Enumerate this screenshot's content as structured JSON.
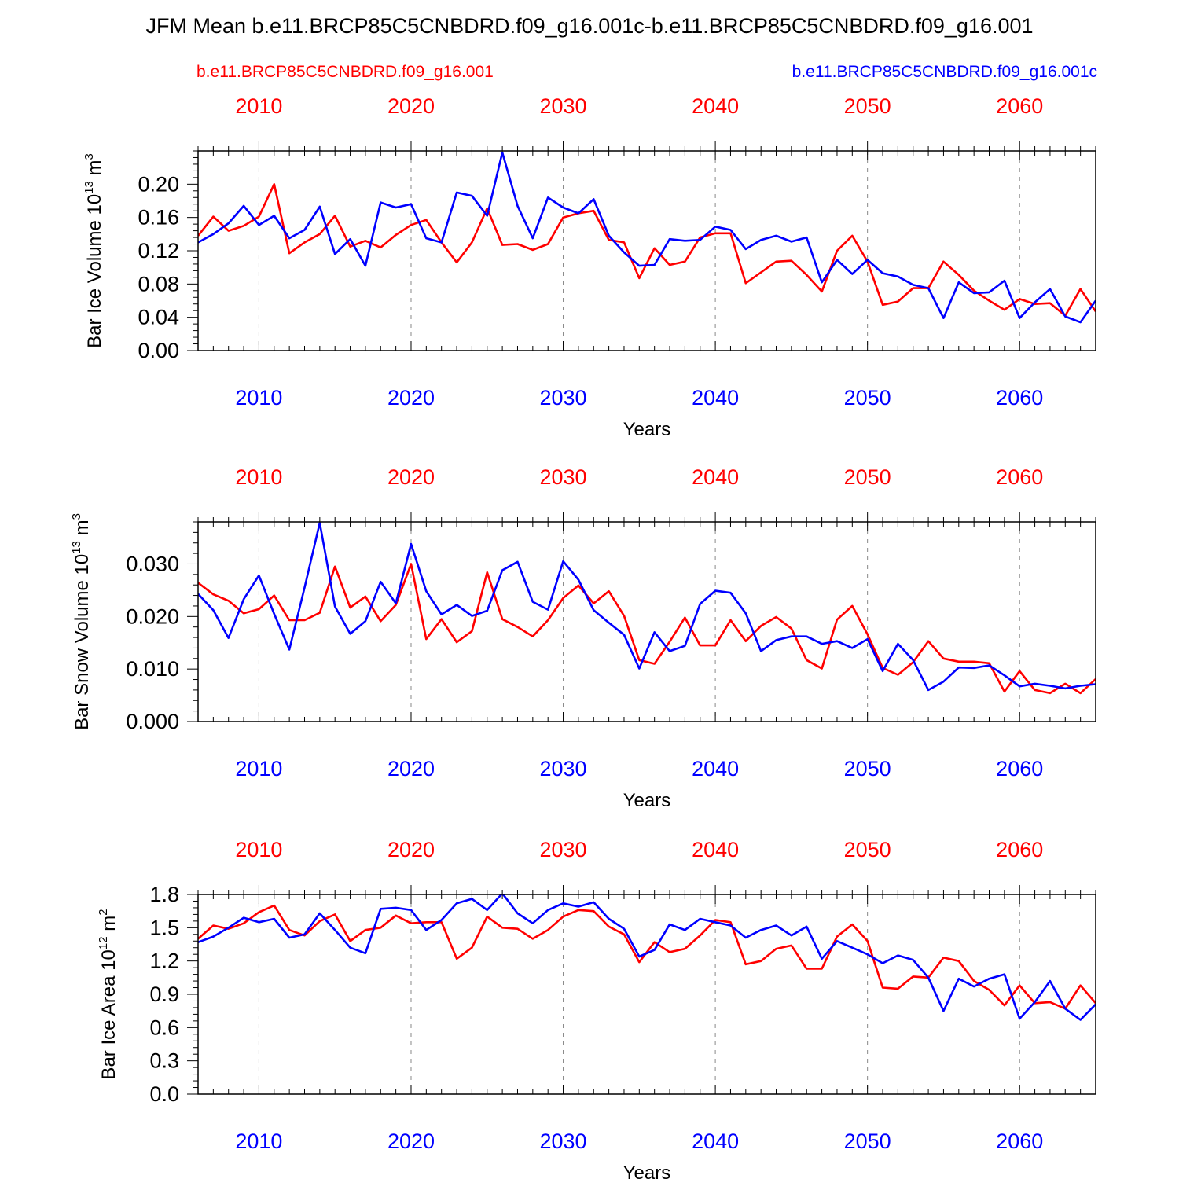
{
  "title": "JFM Mean b.e11.BRCP85C5CNBDRD.f09_g16.001c-b.e11.BRCP85C5CNBDRD.f09_g16.001",
  "legend": {
    "left": {
      "label": "b.e11.BRCP85C5CNBDRD.f09_g16.001",
      "color": "#ff0000"
    },
    "right": {
      "label": "b.e11.BRCP85C5CNBDRD.f09_g16.001c",
      "color": "#0000ff"
    }
  },
  "chart_data": [
    {
      "type": "line",
      "title": "",
      "xlabel": "Years",
      "ylabel": "Bar Ice Volume 10^13 m^3",
      "ylabel_parts": {
        "base": "Bar Ice Volume 10",
        "exp": "13",
        "unit": " m",
        "unit_exp": "3"
      },
      "xlim": [
        2006,
        2065
      ],
      "ylim": [
        0,
        0.24
      ],
      "xticks": [
        2010,
        2020,
        2030,
        2040,
        2050,
        2060
      ],
      "xtick_labels": [
        "2010",
        "2020",
        "2030",
        "2040",
        "2050",
        "2060"
      ],
      "yticks": [
        0,
        0.04,
        0.08,
        0.12,
        0.16,
        0.2
      ],
      "ytick_labels": [
        "0.00",
        "0.04",
        "0.08",
        "0.12",
        "0.16",
        "0.20"
      ],
      "x": [
        2006,
        2007,
        2008,
        2009,
        2010,
        2011,
        2012,
        2013,
        2014,
        2015,
        2016,
        2017,
        2018,
        2019,
        2020,
        2021,
        2022,
        2023,
        2024,
        2025,
        2026,
        2027,
        2028,
        2029,
        2030,
        2031,
        2032,
        2033,
        2034,
        2035,
        2036,
        2037,
        2038,
        2039,
        2040,
        2041,
        2042,
        2043,
        2044,
        2045,
        2046,
        2047,
        2048,
        2049,
        2050,
        2051,
        2052,
        2053,
        2054,
        2055,
        2056,
        2057,
        2058,
        2059,
        2060,
        2061,
        2062,
        2063,
        2064,
        2065
      ],
      "series": [
        {
          "name": "b.e11.BRCP85C5CNBDRD.f09_g16.001",
          "color": "#ff0000",
          "values": [
            0.138,
            0.161,
            0.144,
            0.15,
            0.161,
            0.2,
            0.117,
            0.13,
            0.14,
            0.162,
            0.125,
            0.132,
            0.124,
            0.139,
            0.151,
            0.157,
            0.13,
            0.106,
            0.13,
            0.171,
            0.127,
            0.128,
            0.121,
            0.128,
            0.16,
            0.165,
            0.168,
            0.133,
            0.13,
            0.087,
            0.123,
            0.103,
            0.107,
            0.136,
            0.141,
            0.141,
            0.081,
            0.094,
            0.107,
            0.108,
            0.091,
            0.071,
            0.12,
            0.138,
            0.107,
            0.055,
            0.059,
            0.075,
            0.075,
            0.107,
            0.091,
            0.072,
            0.06,
            0.049,
            0.062,
            0.056,
            0.057,
            0.042,
            0.074,
            0.047
          ]
        },
        {
          "name": "b.e11.BRCP85C5CNBDRD.f09_g16.001c",
          "color": "#0000ff",
          "values": [
            0.13,
            0.14,
            0.153,
            0.174,
            0.151,
            0.162,
            0.135,
            0.145,
            0.173,
            0.116,
            0.134,
            0.102,
            0.178,
            0.172,
            0.176,
            0.135,
            0.13,
            0.19,
            0.186,
            0.162,
            0.238,
            0.174,
            0.135,
            0.184,
            0.172,
            0.165,
            0.182,
            0.138,
            0.118,
            0.102,
            0.103,
            0.134,
            0.132,
            0.133,
            0.149,
            0.145,
            0.122,
            0.133,
            0.138,
            0.131,
            0.136,
            0.082,
            0.109,
            0.092,
            0.109,
            0.093,
            0.089,
            0.079,
            0.075,
            0.039,
            0.082,
            0.069,
            0.07,
            0.084,
            0.039,
            0.058,
            0.074,
            0.041,
            0.034,
            0.06
          ]
        }
      ]
    },
    {
      "type": "line",
      "title": "",
      "xlabel": "Years",
      "ylabel": "Bar Snow Volume 10^13 m^3",
      "ylabel_parts": {
        "base": "Bar Snow Volume 10",
        "exp": "13",
        "unit": " m",
        "unit_exp": "3"
      },
      "xlim": [
        2006,
        2065
      ],
      "ylim": [
        0,
        0.038
      ],
      "xticks": [
        2010,
        2020,
        2030,
        2040,
        2050,
        2060
      ],
      "xtick_labels": [
        "2010",
        "2020",
        "2030",
        "2040",
        "2050",
        "2060"
      ],
      "yticks": [
        0,
        0.01,
        0.02,
        0.03
      ],
      "ytick_labels": [
        "0.000",
        "0.010",
        "0.020",
        "0.030"
      ],
      "x": [
        2006,
        2007,
        2008,
        2009,
        2010,
        2011,
        2012,
        2013,
        2014,
        2015,
        2016,
        2017,
        2018,
        2019,
        2020,
        2021,
        2022,
        2023,
        2024,
        2025,
        2026,
        2027,
        2028,
        2029,
        2030,
        2031,
        2032,
        2033,
        2034,
        2035,
        2036,
        2037,
        2038,
        2039,
        2040,
        2041,
        2042,
        2043,
        2044,
        2045,
        2046,
        2047,
        2048,
        2049,
        2050,
        2051,
        2052,
        2053,
        2054,
        2055,
        2056,
        2057,
        2058,
        2059,
        2060,
        2061,
        2062,
        2063,
        2064,
        2065
      ],
      "series": [
        {
          "name": "b.e11.BRCP85C5CNBDRD.f09_g16.001",
          "color": "#ff0000",
          "values": [
            0.0264,
            0.0242,
            0.023,
            0.0206,
            0.0214,
            0.024,
            0.0193,
            0.0193,
            0.0207,
            0.0295,
            0.0217,
            0.0238,
            0.0191,
            0.0222,
            0.03,
            0.0157,
            0.0195,
            0.0151,
            0.0172,
            0.0284,
            0.0195,
            0.018,
            0.0162,
            0.0193,
            0.0235,
            0.0259,
            0.0225,
            0.0248,
            0.0201,
            0.0117,
            0.011,
            0.0152,
            0.0198,
            0.0145,
            0.0145,
            0.0193,
            0.0153,
            0.0182,
            0.0199,
            0.0177,
            0.0117,
            0.0101,
            0.0194,
            0.022,
            0.0166,
            0.0102,
            0.0089,
            0.0113,
            0.0153,
            0.012,
            0.0114,
            0.0114,
            0.0111,
            0.0057,
            0.0096,
            0.006,
            0.0054,
            0.0072,
            0.0054,
            0.0081
          ]
        },
        {
          "name": "b.e11.BRCP85C5CNBDRD.f09_g16.001c",
          "color": "#0000ff",
          "values": [
            0.0243,
            0.0212,
            0.0159,
            0.0233,
            0.0278,
            0.0205,
            0.0137,
            0.0255,
            0.0378,
            0.0219,
            0.0167,
            0.0191,
            0.0266,
            0.0225,
            0.0338,
            0.0248,
            0.0204,
            0.0222,
            0.0201,
            0.0211,
            0.0288,
            0.0304,
            0.0228,
            0.0213,
            0.0305,
            0.027,
            0.0212,
            0.0188,
            0.0165,
            0.0101,
            0.017,
            0.0134,
            0.0144,
            0.0224,
            0.0249,
            0.0245,
            0.0206,
            0.0134,
            0.0155,
            0.0162,
            0.0162,
            0.0148,
            0.0153,
            0.014,
            0.0157,
            0.0096,
            0.0148,
            0.0117,
            0.006,
            0.0076,
            0.0103,
            0.0102,
            0.0107,
            0.0088,
            0.0067,
            0.0072,
            0.0068,
            0.0063,
            0.0068,
            0.0071
          ]
        }
      ]
    },
    {
      "type": "line",
      "title": "",
      "xlabel": "Years",
      "ylabel": "Bar Ice Area 10^12 m^2",
      "ylabel_parts": {
        "base": "Bar Ice Area 10",
        "exp": "12",
        "unit": " m",
        "unit_exp": "2"
      },
      "xlim": [
        2006,
        2065
      ],
      "ylim": [
        0,
        1.8
      ],
      "xticks": [
        2010,
        2020,
        2030,
        2040,
        2050,
        2060
      ],
      "xtick_labels": [
        "2010",
        "2020",
        "2030",
        "2040",
        "2050",
        "2060"
      ],
      "yticks": [
        0,
        0.3,
        0.6,
        0.9,
        1.2,
        1.5,
        1.8
      ],
      "ytick_labels": [
        "0.0",
        "0.3",
        "0.6",
        "0.9",
        "1.2",
        "1.5",
        "1.8"
      ],
      "x": [
        2006,
        2007,
        2008,
        2009,
        2010,
        2011,
        2012,
        2013,
        2014,
        2015,
        2016,
        2017,
        2018,
        2019,
        2020,
        2021,
        2022,
        2023,
        2024,
        2025,
        2026,
        2027,
        2028,
        2029,
        2030,
        2031,
        2032,
        2033,
        2034,
        2035,
        2036,
        2037,
        2038,
        2039,
        2040,
        2041,
        2042,
        2043,
        2044,
        2045,
        2046,
        2047,
        2048,
        2049,
        2050,
        2051,
        2052,
        2053,
        2054,
        2055,
        2056,
        2057,
        2058,
        2059,
        2060,
        2061,
        2062,
        2063,
        2064,
        2065
      ],
      "series": [
        {
          "name": "b.e11.BRCP85C5CNBDRD.f09_g16.001",
          "color": "#ff0000",
          "values": [
            1.4,
            1.52,
            1.49,
            1.54,
            1.64,
            1.7,
            1.48,
            1.43,
            1.56,
            1.62,
            1.38,
            1.48,
            1.5,
            1.61,
            1.54,
            1.55,
            1.55,
            1.22,
            1.32,
            1.6,
            1.5,
            1.49,
            1.4,
            1.48,
            1.6,
            1.66,
            1.65,
            1.51,
            1.44,
            1.19,
            1.37,
            1.28,
            1.31,
            1.43,
            1.57,
            1.55,
            1.17,
            1.2,
            1.31,
            1.34,
            1.13,
            1.13,
            1.42,
            1.53,
            1.38,
            0.96,
            0.95,
            1.06,
            1.05,
            1.23,
            1.2,
            1.02,
            0.94,
            0.8,
            0.98,
            0.82,
            0.83,
            0.77,
            0.98,
            0.82
          ]
        },
        {
          "name": "b.e11.BRCP85C5CNBDRD.f09_g16.001c",
          "color": "#0000ff",
          "values": [
            1.37,
            1.42,
            1.5,
            1.59,
            1.55,
            1.58,
            1.41,
            1.44,
            1.63,
            1.48,
            1.32,
            1.27,
            1.67,
            1.68,
            1.66,
            1.48,
            1.57,
            1.72,
            1.76,
            1.66,
            1.81,
            1.63,
            1.54,
            1.66,
            1.72,
            1.69,
            1.73,
            1.58,
            1.49,
            1.24,
            1.3,
            1.53,
            1.48,
            1.58,
            1.55,
            1.52,
            1.41,
            1.48,
            1.52,
            1.43,
            1.51,
            1.22,
            1.38,
            1.32,
            1.26,
            1.18,
            1.25,
            1.21,
            1.05,
            0.75,
            1.04,
            0.97,
            1.04,
            1.08,
            0.68,
            0.83,
            1.02,
            0.77,
            0.67,
            0.81
          ]
        }
      ]
    }
  ]
}
